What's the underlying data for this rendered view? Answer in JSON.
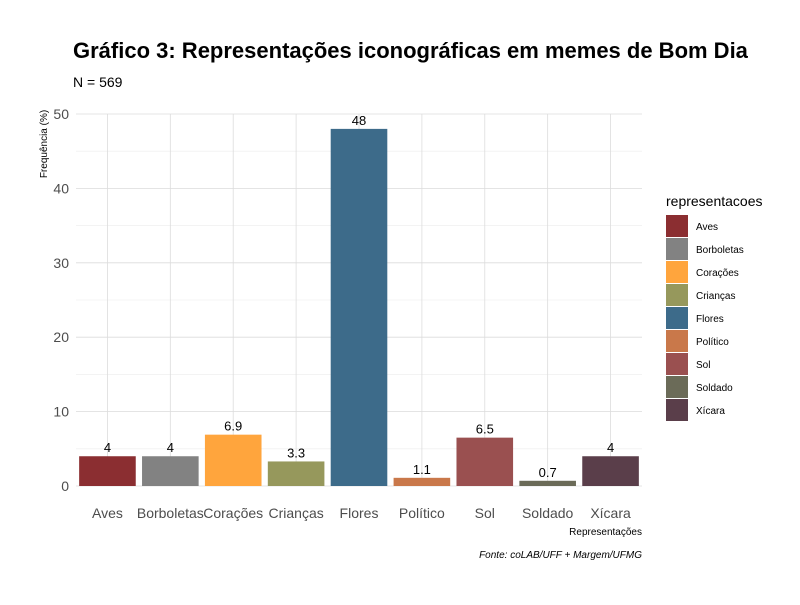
{
  "chart_data": {
    "type": "bar",
    "title": "Gráfico 3: Representações iconográficas em memes de Bom Dia",
    "subtitle": "N = 569",
    "xlabel": "Representações",
    "ylabel": "Frequência (%)",
    "caption": "Fonte: coLAB/UFF + Margem/UFMG",
    "categories": [
      "Aves",
      "Borboletas",
      "Corações",
      "Crianças",
      "Flores",
      "Político",
      "Sol",
      "Soldado",
      "Xícara"
    ],
    "values": [
      4,
      4,
      6.9,
      3.3,
      48,
      1.1,
      6.5,
      0.7,
      4
    ],
    "value_labels": [
      "4",
      "4",
      "6.9",
      "3.3",
      "48",
      "1.1",
      "6.5",
      "0.7",
      "4"
    ],
    "colors": [
      "#8b2e31",
      "#828282",
      "#ffa53d",
      "#96985c",
      "#3d6b8a",
      "#c9784a",
      "#9a5050",
      "#6b6b58",
      "#5a3e4a"
    ],
    "ylim": [
      0,
      50
    ],
    "yticks": [
      0,
      10,
      20,
      30,
      40,
      50
    ],
    "grid": true,
    "legend": {
      "title": "representacoes",
      "placement": "right",
      "entries": [
        "Aves",
        "Borboletas",
        "Corações",
        "Crianças",
        "Flores",
        "Político",
        "Sol",
        "Soldado",
        "Xícara"
      ]
    }
  }
}
